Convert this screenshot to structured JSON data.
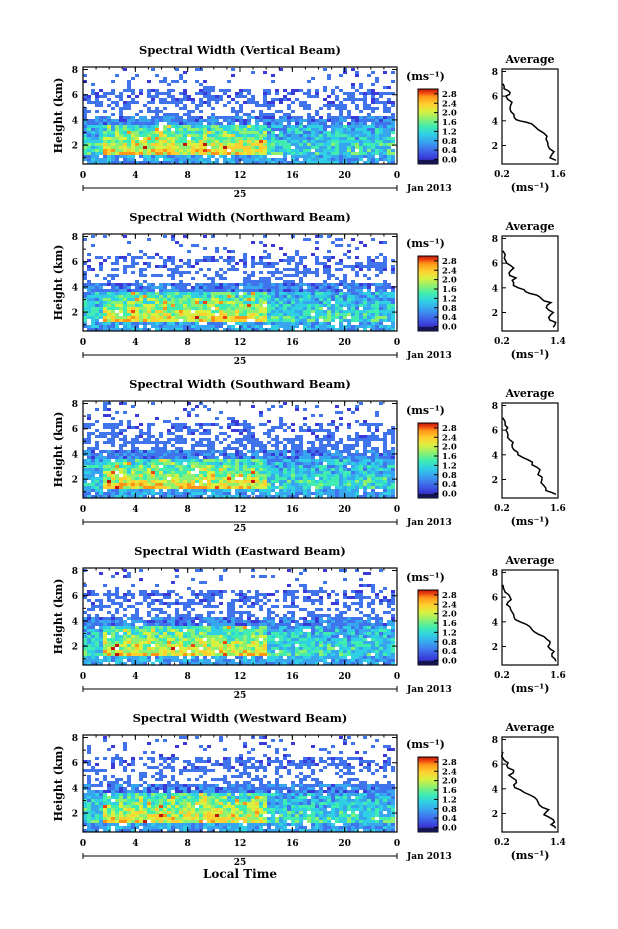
{
  "figure": {
    "x_axis_label": "Local Time",
    "date_label": "Jan 2013",
    "day_label": "25",
    "colorbar_unit": "(ms⁻¹)",
    "average_unit": "(ms⁻¹)"
  },
  "colors": {
    "colormap": [
      "#1c1c70",
      "#3a3ad8",
      "#3f74ec",
      "#38a6ef",
      "#30d0e4",
      "#40ecb0",
      "#8cf070",
      "#d8f040",
      "#ffd030",
      "#ff9418",
      "#ee4410",
      "#c01808"
    ]
  },
  "chart_data": [
    {
      "type": "heatmap",
      "title": "Spectral Width (Vertical Beam)",
      "xlabel": "",
      "ylabel": "Height (km)",
      "xlim": [
        0,
        24
      ],
      "ylim": [
        0.5,
        8.2
      ],
      "xticks": [
        "0",
        "4",
        "8",
        "12",
        "16",
        "20",
        "0"
      ],
      "yticks": [
        "2",
        "4",
        "6",
        "8"
      ],
      "colorbar": {
        "label": "(ms⁻¹)",
        "range": [
          0.0,
          2.8
        ],
        "ticks": [
          "2.8",
          "2.4",
          "2.0",
          "1.6",
          "1.2",
          "0.8",
          "0.4",
          "0.0"
        ]
      },
      "average_profile": {
        "title": "Average",
        "xlim": [
          0.2,
          1.6
        ],
        "xticks": [
          "0.2",
          "1.6"
        ],
        "yticks": [
          "2",
          "4",
          "6",
          "8"
        ],
        "ylim": [
          0.5,
          8.2
        ],
        "height": [
          0.8,
          1.0,
          1.5,
          2.0,
          2.5,
          3.0,
          3.3,
          3.6,
          3.9,
          4.1,
          4.5,
          5.0,
          5.5,
          6.0,
          6.3,
          6.6,
          7.0
        ],
        "width": [
          1.55,
          1.4,
          1.5,
          1.35,
          1.3,
          1.25,
          1.1,
          1.0,
          0.8,
          0.55,
          0.5,
          0.4,
          0.45,
          0.3,
          0.4,
          0.25,
          0.22
        ]
      }
    },
    {
      "type": "heatmap",
      "title": "Spectral Width (Northward Beam)",
      "xlabel": "",
      "ylabel": "Height (km)",
      "xlim": [
        0,
        24
      ],
      "ylim": [
        0.5,
        8.2
      ],
      "xticks": [
        "0",
        "4",
        "8",
        "12",
        "16",
        "20",
        "0"
      ],
      "yticks": [
        "2",
        "4",
        "6",
        "8"
      ],
      "colorbar": {
        "label": "(ms⁻¹)",
        "range": [
          0.0,
          2.8
        ],
        "ticks": [
          "2.8",
          "2.4",
          "2.0",
          "1.6",
          "1.2",
          "0.8",
          "0.4",
          "0.0"
        ]
      },
      "average_profile": {
        "title": "Average",
        "xlim": [
          0.2,
          1.4
        ],
        "xticks": [
          "0.2",
          "1.4"
        ],
        "yticks": [
          "2",
          "4",
          "6",
          "8"
        ],
        "ylim": [
          0.5,
          8.2
        ],
        "height": [
          0.8,
          1.2,
          1.6,
          2.0,
          2.4,
          2.8,
          3.1,
          3.4,
          3.7,
          4.0,
          4.4,
          4.8,
          5.2,
          5.6,
          6.0,
          6.4,
          7.0
        ],
        "width": [
          1.3,
          1.35,
          1.2,
          1.3,
          1.15,
          1.25,
          1.05,
          0.95,
          0.7,
          0.55,
          0.45,
          0.5,
          0.35,
          0.45,
          0.3,
          0.25,
          0.22
        ]
      }
    },
    {
      "type": "heatmap",
      "title": "Spectral Width (Southward Beam)",
      "xlabel": "",
      "ylabel": "Height (km)",
      "xlim": [
        0,
        24
      ],
      "ylim": [
        0.5,
        8.2
      ],
      "xticks": [
        "0",
        "4",
        "8",
        "12",
        "16",
        "20",
        "0"
      ],
      "yticks": [
        "2",
        "4",
        "6",
        "8"
      ],
      "colorbar": {
        "label": "(ms⁻¹)",
        "range": [
          0.0,
          2.8
        ],
        "ticks": [
          "2.8",
          "2.4",
          "2.0",
          "1.6",
          "1.2",
          "0.8",
          "0.4",
          "0.0"
        ]
      },
      "average_profile": {
        "title": "Average",
        "xlim": [
          0.2,
          1.6
        ],
        "xticks": [
          "0.2",
          "1.6"
        ],
        "yticks": [
          "2",
          "4",
          "6",
          "8"
        ],
        "ylim": [
          0.5,
          8.2
        ],
        "height": [
          0.8,
          1.1,
          1.5,
          2.0,
          2.4,
          2.8,
          3.2,
          3.6,
          4.0,
          4.4,
          4.8,
          5.2,
          5.6,
          6.0,
          6.4,
          7.0
        ],
        "width": [
          1.55,
          1.3,
          1.25,
          1.2,
          1.1,
          1.15,
          0.95,
          0.85,
          0.6,
          0.5,
          0.45,
          0.4,
          0.35,
          0.3,
          0.28,
          0.22
        ]
      }
    },
    {
      "type": "heatmap",
      "title": "Spectral Width (Eastward Beam)",
      "xlabel": "",
      "ylabel": "Height (km)",
      "xlim": [
        0,
        24
      ],
      "ylim": [
        0.5,
        8.2
      ],
      "xticks": [
        "0",
        "4",
        "8",
        "12",
        "16",
        "20",
        "0"
      ],
      "yticks": [
        "2",
        "4",
        "6",
        "8"
      ],
      "colorbar": {
        "label": "(ms⁻¹)",
        "range": [
          0.0,
          2.8
        ],
        "ticks": [
          "2.8",
          "2.4",
          "2.0",
          "1.6",
          "1.2",
          "0.8",
          "0.4",
          "0.0"
        ]
      },
      "average_profile": {
        "title": "Average",
        "xlim": [
          0.2,
          1.6
        ],
        "xticks": [
          "0.2",
          "1.6"
        ],
        "yticks": [
          "2",
          "4",
          "6",
          "8"
        ],
        "ylim": [
          0.5,
          8.2
        ],
        "height": [
          0.8,
          1.2,
          1.6,
          2.0,
          2.4,
          2.8,
          3.2,
          3.6,
          4.0,
          4.4,
          4.8,
          5.2,
          5.6,
          6.0,
          6.4,
          7.0
        ],
        "width": [
          1.55,
          1.45,
          1.5,
          1.35,
          1.4,
          1.25,
          1.0,
          0.9,
          0.65,
          0.5,
          0.45,
          0.4,
          0.35,
          0.4,
          0.28,
          0.22
        ]
      }
    },
    {
      "type": "heatmap",
      "title": "Spectral Width (Westward Beam)",
      "xlabel": "Local Time",
      "ylabel": "Height (km)",
      "xlim": [
        0,
        24
      ],
      "ylim": [
        0.5,
        8.2
      ],
      "xticks": [
        "0",
        "4",
        "8",
        "12",
        "16",
        "20",
        "0"
      ],
      "yticks": [
        "2",
        "4",
        "6",
        "8"
      ],
      "colorbar": {
        "label": "(ms⁻¹)",
        "range": [
          0.0,
          2.8
        ],
        "ticks": [
          "2.8",
          "2.4",
          "2.0",
          "1.6",
          "1.2",
          "0.8",
          "0.4",
          "0.0"
        ]
      },
      "average_profile": {
        "title": "Average",
        "xlim": [
          0.2,
          1.4
        ],
        "xticks": [
          "0.2",
          "1.4"
        ],
        "yticks": [
          "2",
          "4",
          "6",
          "8"
        ],
        "ylim": [
          0.5,
          8.2
        ],
        "height": [
          0.8,
          1.1,
          1.5,
          1.9,
          2.3,
          2.7,
          3.1,
          3.5,
          3.9,
          4.3,
          4.7,
          5.1,
          5.5,
          5.9,
          6.3,
          7.0
        ],
        "width": [
          1.35,
          1.25,
          1.3,
          1.1,
          1.2,
          1.0,
          0.95,
          0.8,
          0.6,
          0.45,
          0.5,
          0.35,
          0.45,
          0.3,
          0.25,
          0.22
        ]
      }
    }
  ]
}
